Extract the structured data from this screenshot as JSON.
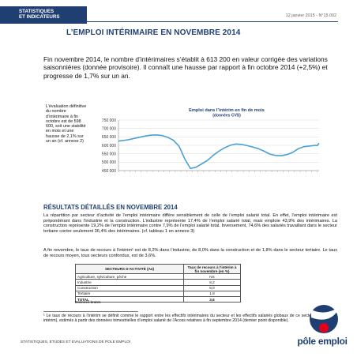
{
  "header": {
    "band_line1": "STATISTIQUES",
    "band_line2": "ET INDICATEURS",
    "date_ref": "12 janvier 2015 - N°15.002"
  },
  "title": "L’EMPLOI INTÉRIMAIRE EN NOVEMBRE 2014",
  "intro": "Fin novembre 2014, le nombre d’intérimaires s’établit à 613 200 en valeur corrigée des variations saisonnières (donnée provisoire). Il connaît une hausse par rapport à fin octobre 2014 (+2,5%) et progresse de 1,7% sur un an.",
  "side_note": "L’évaluation définitive du nombre d’intérimaire à fin octobre est de 598 600, soit une stabilité en mois et une hausse de 2,1% sur un an (cf. annexe 2)",
  "chart_data": {
    "type": "line",
    "title": "Emploi dans l’intérim en fin de mois",
    "subtitle": "(données CVS)",
    "y_ticks": [
      "750 000",
      "700 000",
      "650 000",
      "600 000",
      "550 000",
      "500 000",
      "450 000"
    ],
    "ylim": [
      450000,
      750000
    ],
    "x_range": [
      "2006-01",
      "2014-11"
    ],
    "series": [
      {
        "points": [
          [
            "2006-01",
            625000
          ],
          [
            "2006-06",
            633000
          ],
          [
            "2006-12",
            648000
          ],
          [
            "2007-03",
            655000
          ],
          [
            "2007-06",
            660000
          ],
          [
            "2007-09",
            662000
          ],
          [
            "2007-12",
            658000
          ],
          [
            "2008-03",
            648000
          ],
          [
            "2008-06",
            630000
          ],
          [
            "2008-09",
            595000
          ],
          [
            "2008-12",
            520000
          ],
          [
            "2009-03",
            462000
          ],
          [
            "2009-06",
            470000
          ],
          [
            "2009-09",
            490000
          ],
          [
            "2009-12",
            510000
          ],
          [
            "2010-03",
            540000
          ],
          [
            "2010-06",
            565000
          ],
          [
            "2010-09",
            585000
          ],
          [
            "2010-12",
            600000
          ],
          [
            "2011-03",
            608000
          ],
          [
            "2011-06",
            605000
          ],
          [
            "2011-09",
            598000
          ],
          [
            "2011-12",
            590000
          ],
          [
            "2012-03",
            580000
          ],
          [
            "2012-06",
            565000
          ],
          [
            "2012-09",
            548000
          ],
          [
            "2012-12",
            540000
          ],
          [
            "2013-03",
            538000
          ],
          [
            "2013-06",
            545000
          ],
          [
            "2013-09",
            558000
          ],
          [
            "2013-12",
            580000
          ],
          [
            "2014-03",
            592000
          ],
          [
            "2014-06",
            596000
          ],
          [
            "2014-09",
            600000
          ],
          [
            "2014-10",
            598000
          ],
          [
            "2014-11",
            613200
          ]
        ]
      }
    ],
    "line_color": "#4aa0cf",
    "grid": true,
    "legend": "none"
  },
  "section_title": "RÉSULTATS DÉTAILLÉS EN NOVEMBRE 2014",
  "paragraph1": "La répartition par secteur d’activité de l’emploi intérimaire diffère sensiblement de celle de l’emploi salarié total. En effet, l’emploi intérimaire est prépondérant dans l’industrie et la construction. L’industrie représente 17,4% de l’emploi salarié total, mais emploie 43,9% des intérimaires. La construction représente 19,2% de l’emploi intérimaire contre 7,9% de l’emploi salarié total. Inversement, 74,6% des salariés travaillant dans le secteur tertiaire contre seulement 36,4% des intérimaires. (cf. tableau 1 en annexe 3)",
  "paragraph2": "A fin novembre, le taux de recours à l’intérim¹ est de 8,2% dans l’industrie, de 8,0% dans la construction et de 1,8% dans le secteur tertiaire. Le taux de recours moyen, tous secteurs confondus, est de 3,6%.",
  "table": {
    "col1": "SECTEURS D’ACTIVITÉ (A4)",
    "col2": "Taux de recours à l’intérim à fin novembre (en %)",
    "rows": [
      {
        "label": "Agriculture, sylviculture, pêche",
        "value": "NS"
      },
      {
        "label": "Industrie",
        "value": "8,2"
      },
      {
        "label": "Construction",
        "value": "8,0"
      },
      {
        "label": "Tertiaire",
        "value": "1,8"
      }
    ],
    "total_label": "TOTAL",
    "total_value": "3,6",
    "source": "Données brutes"
  },
  "footnote": "¹ Le taux de recours à l’intérim se définit comme le rapport entre les effectifs intérimaires du secteur et les effectifs salariés globaux de ce secteur (y compris intérim), estimés à partir des données trimestrielles d’emploi salarié de l’Acoss relatives à fin septembre 2014 (dernier point disponible).",
  "footer": {
    "text": "STATISTIQUES, ETUDES ET EVALUATIONS DE POLE EMPLOI",
    "logo_text": "pôle emploi",
    "logo_color": "#1f3f73",
    "accent_color": "#e2001a"
  }
}
